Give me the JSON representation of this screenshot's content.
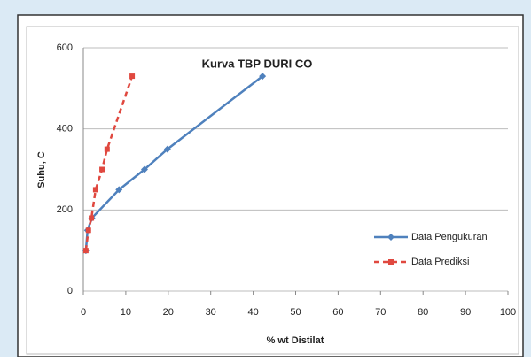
{
  "chart_data": {
    "type": "line",
    "title": "Kurva TBP DURI CO",
    "x_label": "% wt Distilat",
    "y_label": "Suhu, C",
    "series": [
      {
        "name": "Data Pengukuran",
        "color": "#4f81bd",
        "dash": false,
        "marker": "diamond",
        "x": [
          0.6,
          1,
          2,
          8.4,
          14.4,
          19.8,
          42.2
        ],
        "values": [
          100,
          150,
          180,
          250,
          300,
          350,
          530
        ]
      },
      {
        "name": "Data Prediksi",
        "color": "#e0483f",
        "dash": true,
        "marker": "square",
        "x": [
          0.6,
          1.2,
          1.9,
          2.9,
          4.4,
          5.6,
          11.5
        ],
        "values": [
          100,
          150,
          180,
          250,
          300,
          350,
          530
        ]
      }
    ],
    "xlim": [
      0,
      100
    ],
    "xticks": [
      0,
      10,
      20,
      30,
      40,
      50,
      60,
      70,
      80,
      90,
      100
    ],
    "ylim": [
      0,
      600
    ],
    "yticks": [
      0,
      200,
      400,
      600
    ],
    "grid": true,
    "legend": "right"
  }
}
